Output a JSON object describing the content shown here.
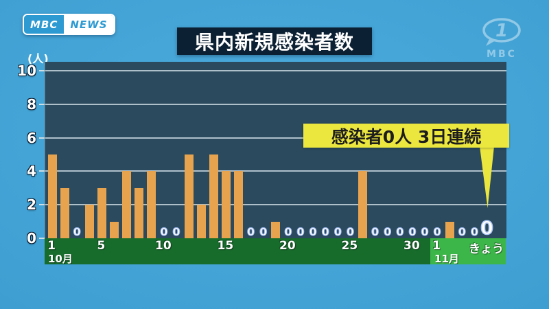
{
  "branding": {
    "logo_mbc": "MBC",
    "logo_news": "NEWS",
    "watermark_channel": "1",
    "watermark_text": "MBC"
  },
  "header": {
    "title": "県内新規感染者数"
  },
  "annotation": {
    "text": "感染者0人 3日連続",
    "bg_color": "#ece73f"
  },
  "colors": {
    "background_blue": "#3f9fd2",
    "plot_background": "#2b4a5d",
    "bar_orange": "#e7a34e",
    "band_october_green": "#176b2b",
    "band_november_green": "#3cb648",
    "title_navy": "#0c2033",
    "annotation_yellow": "#ece73f"
  },
  "chart_data": {
    "type": "bar",
    "title": "県内新規感染者数",
    "ylabel_unit": "(人)",
    "ylim": [
      0,
      10
    ],
    "yticks": [
      0,
      2,
      4,
      6,
      8,
      10
    ],
    "grid": true,
    "zero_marker": "0",
    "october": {
      "label": "10月",
      "values": [
        5,
        3,
        0,
        2,
        3,
        1,
        4,
        3,
        4,
        0,
        0,
        5,
        2,
        5,
        4,
        4,
        0,
        0,
        1,
        0,
        0,
        0,
        0,
        0,
        0,
        4,
        0,
        0,
        0,
        0,
        0
      ]
    },
    "november": {
      "label": "11月",
      "values": [
        0,
        1,
        0,
        0,
        0
      ]
    },
    "x_ticks": [
      {
        "index": 0,
        "label": "1"
      },
      {
        "index": 4,
        "label": "5"
      },
      {
        "index": 9,
        "label": "10"
      },
      {
        "index": 14,
        "label": "15"
      },
      {
        "index": 19,
        "label": "20"
      },
      {
        "index": 24,
        "label": "25"
      },
      {
        "index": 29,
        "label": "30"
      },
      {
        "index": 31,
        "label": "1"
      },
      {
        "index": 35,
        "label": "きょう"
      }
    ],
    "today": {
      "index": 35,
      "label": "きょう",
      "value": 0
    }
  }
}
